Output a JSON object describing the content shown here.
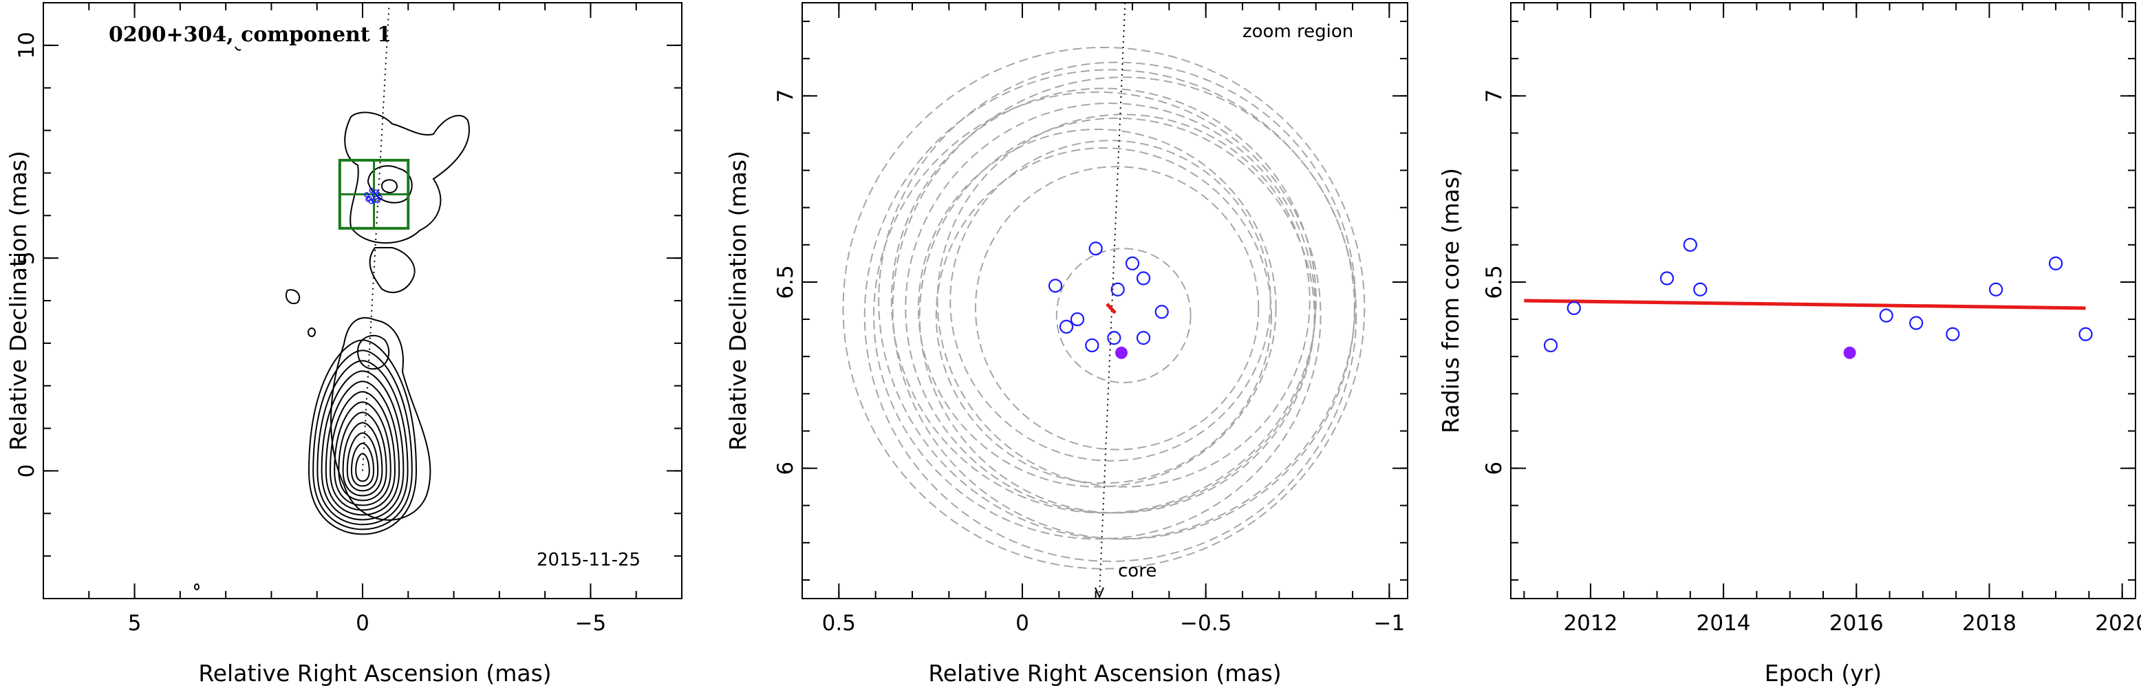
{
  "panels": {
    "left": {
      "title": "0200+304, component 1",
      "epoch_label": "2015-11-25",
      "xlabel": "Relative Right Ascension (mas)",
      "ylabel": "Relative Declination (mas)"
    },
    "middle": {
      "annotation": "zoom region",
      "core_label": "core",
      "xlabel": "Relative Right Ascension (mas)",
      "ylabel": "Relative Declination (mas)"
    },
    "right": {
      "xlabel": "Epoch (yr)",
      "ylabel": "Radius from core (mas)"
    }
  },
  "colors": {
    "open_marker": "#1a1aff",
    "filled_marker": "#8a1aff",
    "fit_line": "#e61a1a",
    "zoom_box": "#1a7a1a",
    "uncertainty_circles": "#a6a6a6"
  },
  "chart_data": [
    {
      "type": "contour",
      "panel": "left",
      "title": "0200+304, component 1",
      "annotation": "2015-11-25",
      "xlabel": "Relative Right Ascension (mas)",
      "ylabel": "Relative Declination (mas)",
      "xlim": [
        7,
        -7
      ],
      "ylim": [
        -3,
        11
      ],
      "xticks": [
        5,
        0,
        -5
      ],
      "yticks": [
        0,
        5,
        10
      ],
      "zoom_box": {
        "x": [
          -1.0,
          0.5
        ],
        "y": [
          5.7,
          7.3
        ]
      },
      "component_center": {
        "x": -0.25,
        "y": 6.45
      }
    },
    {
      "type": "scatter",
      "panel": "middle",
      "annotation": "zoom region",
      "xlabel": "Relative Right Ascension (mas)",
      "ylabel": "Relative Declination (mas)",
      "xlim": [
        0.6,
        -1.05
      ],
      "ylim": [
        5.65,
        7.25
      ],
      "xticks": [
        0.5,
        0,
        -0.5,
        -1
      ],
      "yticks": [
        6,
        6.5,
        7
      ],
      "points_open": [
        {
          "x": -0.09,
          "y": 6.49
        },
        {
          "x": -0.12,
          "y": 6.38
        },
        {
          "x": -0.15,
          "y": 6.4
        },
        {
          "x": -0.2,
          "y": 6.59
        },
        {
          "x": -0.19,
          "y": 6.33
        },
        {
          "x": -0.25,
          "y": 6.35
        },
        {
          "x": -0.26,
          "y": 6.48
        },
        {
          "x": -0.3,
          "y": 6.55
        },
        {
          "x": -0.33,
          "y": 6.51
        },
        {
          "x": -0.33,
          "y": 6.35
        },
        {
          "x": -0.38,
          "y": 6.42
        }
      ],
      "point_filled": {
        "x": -0.27,
        "y": 6.31
      },
      "mean_position": {
        "x": -0.24,
        "y": 6.43
      },
      "uncertainty_radii": [
        0.18,
        0.38,
        0.43,
        0.45,
        0.48,
        0.5,
        0.53,
        0.55,
        0.57,
        0.6,
        0.62,
        0.64,
        0.66,
        0.7
      ],
      "core_direction": "core"
    },
    {
      "type": "scatter",
      "panel": "right",
      "xlabel": "Epoch (yr)",
      "ylabel": "Radius from core (mas)",
      "xlim": [
        2010.8,
        2020.2
      ],
      "ylim": [
        5.65,
        7.25
      ],
      "xticks": [
        2012,
        2014,
        2016,
        2018,
        2020
      ],
      "yticks": [
        6,
        6.5,
        7
      ],
      "points_open": [
        {
          "x": 2011.4,
          "y": 6.33
        },
        {
          "x": 2011.75,
          "y": 6.43
        },
        {
          "x": 2013.15,
          "y": 6.51
        },
        {
          "x": 2013.5,
          "y": 6.6
        },
        {
          "x": 2013.65,
          "y": 6.48
        },
        {
          "x": 2016.45,
          "y": 6.41
        },
        {
          "x": 2016.9,
          "y": 6.39
        },
        {
          "x": 2017.45,
          "y": 6.36
        },
        {
          "x": 2018.1,
          "y": 6.48
        },
        {
          "x": 2019.0,
          "y": 6.55
        },
        {
          "x": 2019.45,
          "y": 6.36
        }
      ],
      "point_filled": {
        "x": 2015.9,
        "y": 6.31
      },
      "fit_line": {
        "x": [
          2011.0,
          2019.45
        ],
        "y": [
          6.45,
          6.43
        ]
      }
    }
  ]
}
